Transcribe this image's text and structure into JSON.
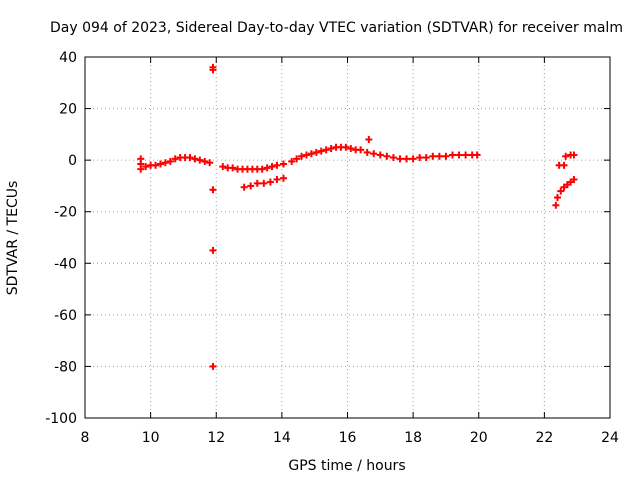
{
  "chart_data": {
    "type": "scatter",
    "title": "Day 094 of 2023, Sidereal Day-to-day VTEC variation (SDTVAR) for receiver malm",
    "xlabel": "GPS time / hours",
    "ylabel": "SDTVAR / TECUs",
    "xlim": [
      8,
      24
    ],
    "ylim": [
      -100,
      40
    ],
    "xticks": [
      8,
      10,
      12,
      14,
      16,
      18,
      20,
      22,
      24
    ],
    "yticks": [
      -100,
      -80,
      -60,
      -40,
      -20,
      0,
      20,
      40
    ],
    "grid": true,
    "marker": "+",
    "color": "#ff0000",
    "series": [
      {
        "name": "SDTVAR",
        "points": [
          [
            9.7,
            -1.5
          ],
          [
            9.85,
            -2.5
          ],
          [
            10.0,
            -2.0
          ],
          [
            10.15,
            -2.0
          ],
          [
            10.3,
            -1.5
          ],
          [
            10.45,
            -1.0
          ],
          [
            10.6,
            -0.5
          ],
          [
            10.75,
            0.5
          ],
          [
            10.9,
            1.0
          ],
          [
            11.05,
            1.0
          ],
          [
            11.2,
            1.0
          ],
          [
            11.35,
            0.5
          ],
          [
            11.5,
            0.0
          ],
          [
            11.65,
            -0.5
          ],
          [
            11.8,
            -1.0
          ],
          [
            9.7,
            0.5
          ],
          [
            9.7,
            -3.5
          ],
          [
            11.9,
            36
          ],
          [
            11.9,
            35
          ],
          [
            11.9,
            -11.5
          ],
          [
            11.9,
            -35
          ],
          [
            11.9,
            -80
          ],
          [
            12.2,
            -2.5
          ],
          [
            12.35,
            -3.0
          ],
          [
            12.5,
            -3.0
          ],
          [
            12.65,
            -3.5
          ],
          [
            12.8,
            -3.5
          ],
          [
            12.95,
            -3.5
          ],
          [
            13.1,
            -3.5
          ],
          [
            13.25,
            -3.5
          ],
          [
            13.4,
            -3.5
          ],
          [
            13.55,
            -3.0
          ],
          [
            13.7,
            -2.5
          ],
          [
            13.85,
            -2.0
          ],
          [
            14.05,
            -1.5
          ],
          [
            12.85,
            -10.5
          ],
          [
            13.05,
            -10.0
          ],
          [
            13.25,
            -9.0
          ],
          [
            13.45,
            -9.0
          ],
          [
            13.65,
            -8.5
          ],
          [
            13.85,
            -7.5
          ],
          [
            14.05,
            -7.0
          ],
          [
            14.3,
            -0.5
          ],
          [
            14.45,
            0.5
          ],
          [
            14.6,
            1.5
          ],
          [
            14.75,
            2.0
          ],
          [
            14.9,
            2.5
          ],
          [
            15.05,
            3.0
          ],
          [
            15.2,
            3.5
          ],
          [
            15.35,
            4.0
          ],
          [
            15.5,
            4.5
          ],
          [
            15.65,
            5.0
          ],
          [
            15.8,
            5.0
          ],
          [
            15.95,
            5.0
          ],
          [
            16.1,
            4.5
          ],
          [
            16.25,
            4.0
          ],
          [
            16.4,
            4.0
          ],
          [
            16.65,
            8.0
          ],
          [
            16.6,
            3.0
          ],
          [
            16.8,
            2.5
          ],
          [
            17.0,
            2.0
          ],
          [
            17.2,
            1.5
          ],
          [
            17.4,
            1.0
          ],
          [
            17.6,
            0.5
          ],
          [
            17.8,
            0.5
          ],
          [
            18.0,
            0.5
          ],
          [
            18.2,
            1.0
          ],
          [
            18.4,
            1.0
          ],
          [
            18.6,
            1.5
          ],
          [
            18.8,
            1.5
          ],
          [
            19.0,
            1.5
          ],
          [
            19.2,
            2.0
          ],
          [
            19.4,
            2.0
          ],
          [
            19.6,
            2.0
          ],
          [
            19.8,
            2.0
          ],
          [
            19.95,
            2.0
          ],
          [
            22.35,
            -17.5
          ],
          [
            22.4,
            -14.5
          ],
          [
            22.5,
            -12.0
          ],
          [
            22.6,
            -10.5
          ],
          [
            22.7,
            -9.5
          ],
          [
            22.8,
            -8.5
          ],
          [
            22.9,
            -7.5
          ],
          [
            22.45,
            -2.0
          ],
          [
            22.6,
            -2.0
          ],
          [
            22.65,
            1.5
          ],
          [
            22.8,
            2.0
          ],
          [
            22.9,
            2.0
          ]
        ]
      }
    ]
  }
}
